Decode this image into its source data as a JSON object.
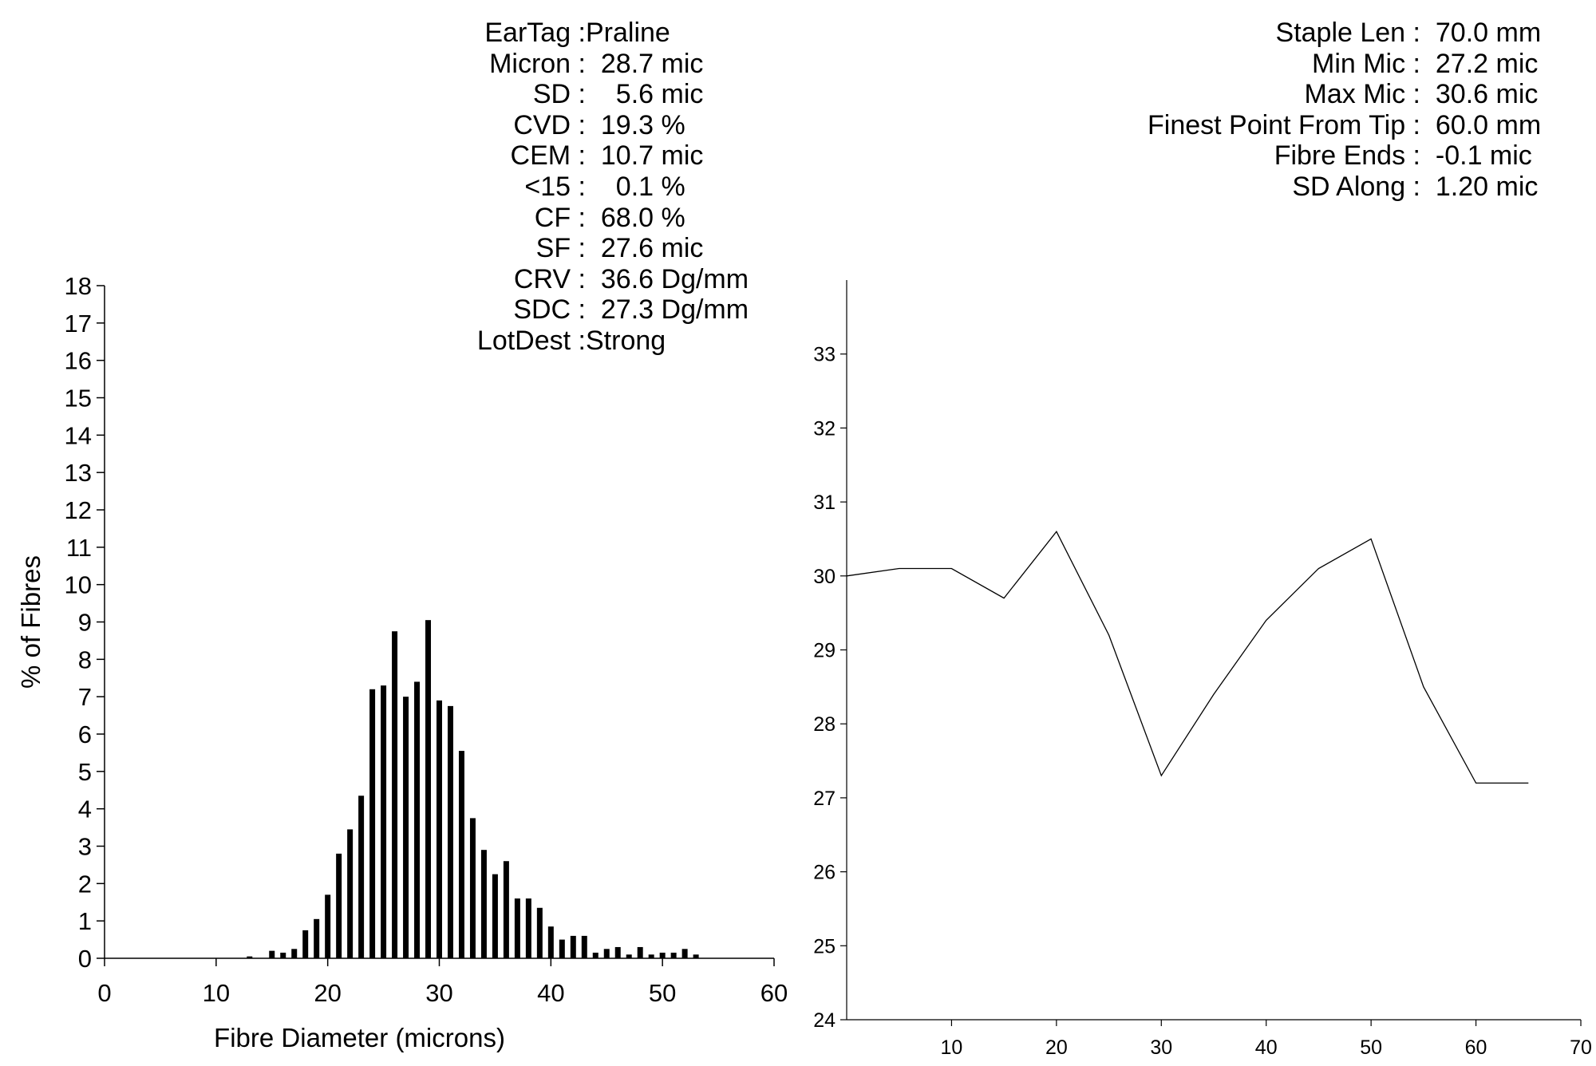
{
  "stats_left": [
    {
      "label": "EarTag :",
      "value": "Praline"
    },
    {
      "label": "Micron :",
      "value": "  28.7 mic"
    },
    {
      "label": "SD :",
      "value": "    5.6 mic"
    },
    {
      "label": "CVD :",
      "value": "  19.3 %"
    },
    {
      "label": "CEM :",
      "value": "  10.7 mic"
    },
    {
      "label": "<15 :",
      "value": "    0.1 %"
    },
    {
      "label": "CF :",
      "value": "  68.0 %"
    },
    {
      "label": "SF :",
      "value": "  27.6 mic"
    },
    {
      "label": "CRV :",
      "value": "  36.6 Dg/mm"
    },
    {
      "label": "SDC :",
      "value": "  27.3 Dg/mm"
    },
    {
      "label": "LotDest :",
      "value": "Strong"
    }
  ],
  "stats_right": [
    {
      "label": "Staple Len :",
      "value": "  70.0 mm"
    },
    {
      "label": "Min Mic :",
      "value": "  27.2 mic"
    },
    {
      "label": "Max Mic :",
      "value": "  30.6 mic"
    },
    {
      "label": "Finest Point From Tip :",
      "value": "  60.0 mm"
    },
    {
      "label": "Fibre Ends :",
      "value": "  -0.1 mic"
    },
    {
      "label": "SD Along :",
      "value": "  1.20 mic"
    }
  ],
  "chart_data": [
    {
      "type": "bar",
      "xlabel": "Fibre Diameter (microns)",
      "ylabel": "% of Fibres",
      "xlim": [
        0,
        60
      ],
      "ylim": [
        0,
        18
      ],
      "xticks": [
        0,
        10,
        20,
        30,
        40,
        50,
        60
      ],
      "yticks": [
        0,
        1,
        2,
        3,
        4,
        5,
        6,
        7,
        8,
        9,
        10,
        11,
        12,
        13,
        14,
        15,
        16,
        17,
        18
      ],
      "grid": false,
      "x": [
        13,
        15,
        16,
        17,
        18,
        19,
        20,
        21,
        22,
        23,
        24,
        25,
        26,
        27,
        28,
        29,
        30,
        31,
        32,
        33,
        34,
        35,
        36,
        37,
        38,
        39,
        40,
        41,
        42,
        43,
        44,
        45,
        46,
        47,
        48,
        49,
        50,
        51,
        52,
        53
      ],
      "values": [
        0.05,
        0.2,
        0.15,
        0.25,
        0.75,
        1.05,
        1.7,
        2.8,
        3.45,
        4.35,
        7.2,
        7.3,
        8.75,
        7.0,
        7.4,
        9.05,
        6.9,
        6.75,
        5.55,
        3.75,
        2.9,
        2.25,
        2.6,
        1.6,
        1.6,
        1.35,
        0.85,
        0.5,
        0.6,
        0.6,
        0.15,
        0.25,
        0.3,
        0.1,
        0.3,
        0.1,
        0.15,
        0.15,
        0.25,
        0.1
      ]
    },
    {
      "type": "line",
      "xlim": [
        0,
        70
      ],
      "ylim": [
        24,
        34
      ],
      "xticks": [
        10,
        20,
        30,
        40,
        50,
        60,
        70
      ],
      "yticks": [
        24,
        25,
        26,
        27,
        28,
        29,
        30,
        31,
        32,
        33
      ],
      "grid": false,
      "x": [
        0,
        5,
        10,
        15,
        20,
        25,
        30,
        35,
        40,
        45,
        50,
        55,
        60,
        65
      ],
      "values": [
        30.0,
        30.1,
        30.1,
        29.7,
        30.6,
        29.2,
        27.3,
        28.4,
        29.4,
        30.1,
        30.5,
        28.5,
        27.2,
        27.2
      ]
    }
  ]
}
